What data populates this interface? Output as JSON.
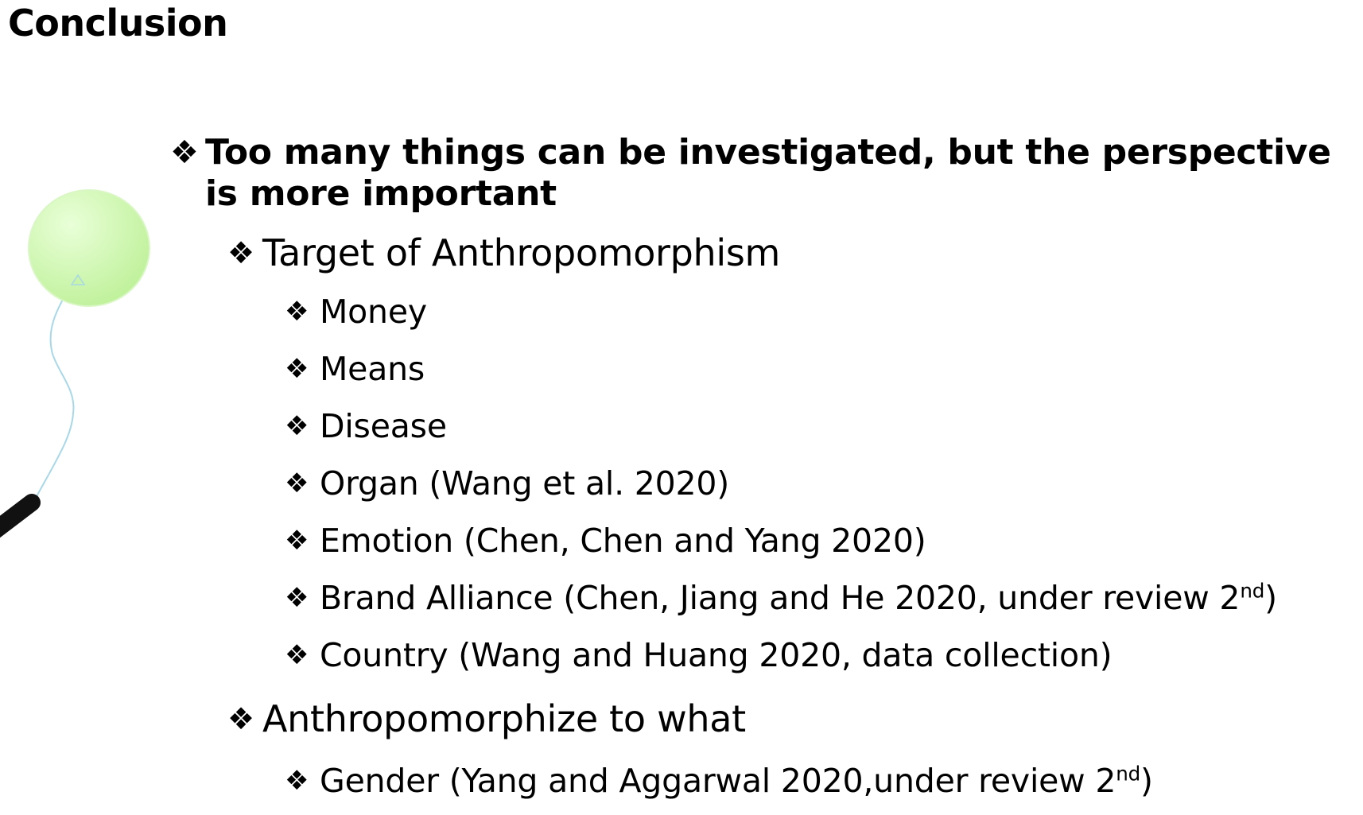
{
  "slide": {
    "title": "Conclusion",
    "bullet_glyph": "❖",
    "points": {
      "main": "Too many things can be investigated, but the perspective is more important",
      "target_heading": "Target of Anthropomorphism",
      "targets": [
        {
          "text": "Money"
        },
        {
          "text": "Means"
        },
        {
          "text": "Disease"
        },
        {
          "text": "Organ (Wang et al. 2020)"
        },
        {
          "text": "Emotion (Chen, Chen and Yang 2020)"
        },
        {
          "text": "Brand Alliance (Chen, Jiang and He 2020, under review 2",
          "sup": "nd",
          "tail": ")"
        },
        {
          "text": "Country (Wang and Huang 2020, data collection)"
        }
      ],
      "to_what_heading": "Anthropomorphize to what",
      "to_what": [
        {
          "text": "Gender (Yang and Aggarwal 2020,under review 2",
          "sup": "nd",
          "tail": ")"
        }
      ]
    },
    "colors": {
      "balloon": "#c8f5a8",
      "string": "#a8d8e8",
      "stick": "#111111"
    },
    "icons": {
      "bullet": "diamond-bullet-icon",
      "decoration": "balloon-icon"
    }
  }
}
